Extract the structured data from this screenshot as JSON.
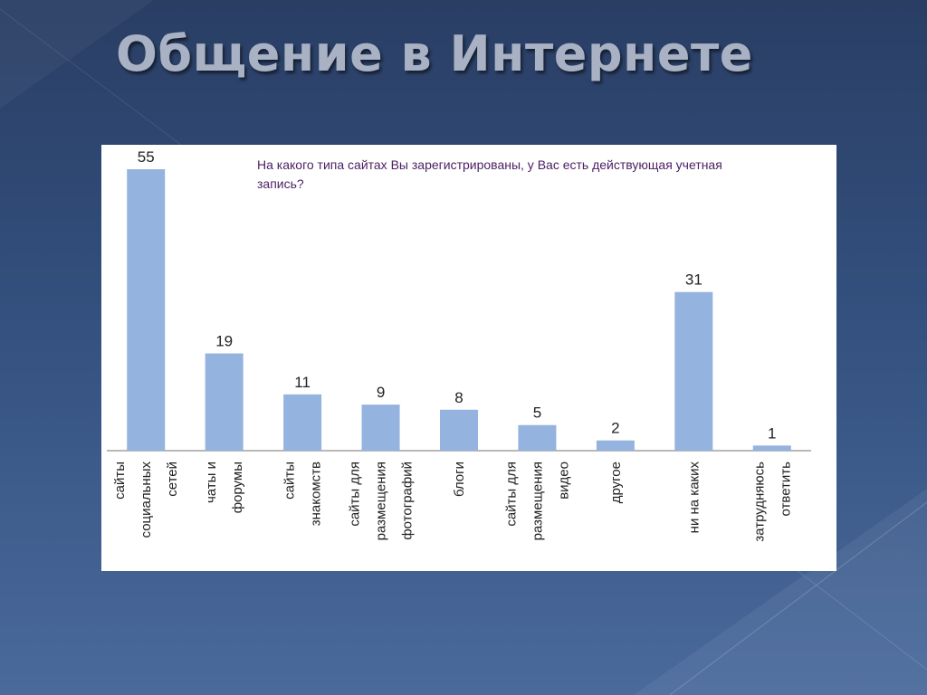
{
  "slide": {
    "title": "Общение в Интернете"
  },
  "colors": {
    "bar": "#95b3df",
    "axis": "#707070",
    "label": "#222222",
    "question": "#4b1e62"
  },
  "chart_data": {
    "type": "bar",
    "title": "На какого типа сайтах Вы зарегистрированы, у Вас есть действующая учетная запись?",
    "xlabel": "",
    "ylabel": "",
    "ylim": [
      0,
      55
    ],
    "grid": false,
    "categories": [
      [
        "сайты",
        "социальных",
        "сетей"
      ],
      [
        "чаты и",
        "форумы"
      ],
      [
        "сайты",
        "знакомств"
      ],
      [
        "сайты для",
        "размещения",
        "фотографий"
      ],
      [
        "блоги"
      ],
      [
        "сайты для",
        "размещения",
        "видео"
      ],
      [
        "другое"
      ],
      [
        "ни на каких"
      ],
      [
        "затрудняюсь",
        "ответить"
      ]
    ],
    "values": [
      55,
      19,
      11,
      9,
      8,
      5,
      2,
      31,
      1
    ]
  }
}
